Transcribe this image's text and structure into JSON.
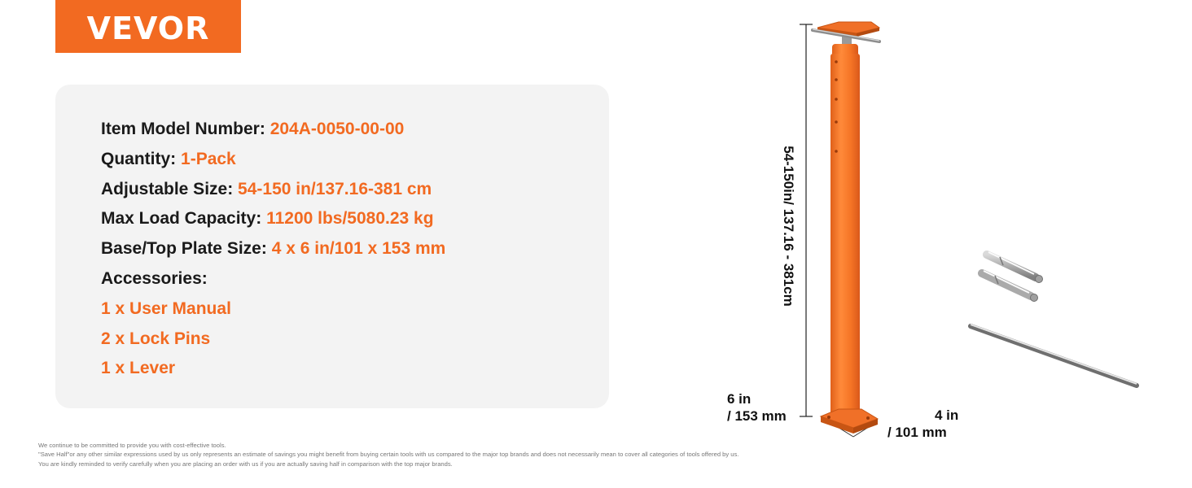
{
  "brand": {
    "logo_text": "VEVOR",
    "accent": "#f26a21"
  },
  "specs": {
    "model": {
      "label": "Item Model Number:",
      "value": "204A-0050-00-00"
    },
    "quantity": {
      "label": "Quantity:",
      "value": "1-Pack"
    },
    "adjustable": {
      "label": "Adjustable Size:",
      "value": "54-150 in/137.16-381 cm"
    },
    "load": {
      "label": "Max Load Capacity:",
      "value": "11200 lbs/5080.23 kg"
    },
    "plate": {
      "label": "Base/Top Plate Size:",
      "value": "4 x 6 in/101 x 153 mm"
    },
    "accessories_label": "Accessories:",
    "accessories": [
      "1 x User Manual",
      "2 x Lock Pins",
      "1 x Lever"
    ]
  },
  "dimensions": {
    "height": "54-150in/ 137.16 - 381cm",
    "width_line1": "6 in",
    "width_line2": "/ 153 mm",
    "depth_line1": "4 in",
    "depth_line2": "/ 101 mm"
  },
  "disclaimer": [
    "We continue to be committed to provide you with cost-effective tools.",
    "\"Save Half\"or any other similar expressions used by us only represents an estimate of savings you might benefit from buying certain tools with us compared to the major top brands and does not necessarily mean to cover all categories of tools offered by us.",
    "You are kindly reminded to verify carefully when you are placing an order with us if you are actually saving half in comparison with the top major brands."
  ]
}
